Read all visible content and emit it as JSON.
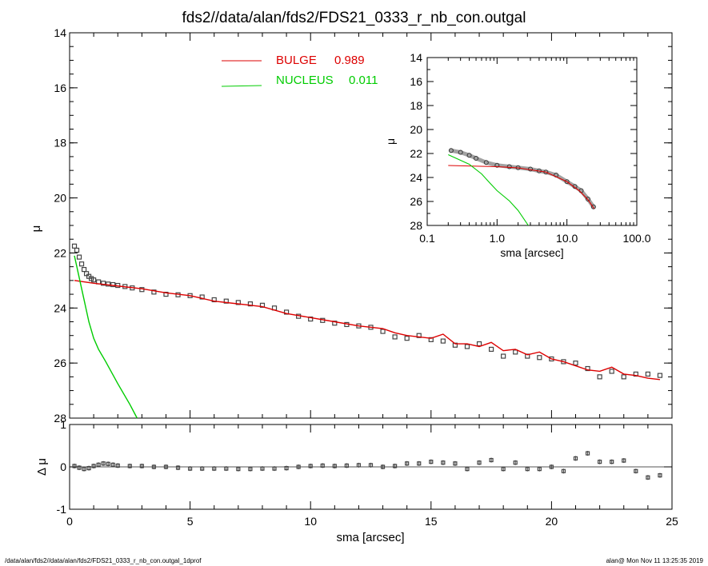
{
  "title": "fds2//data/alan/fds2/FDS21_0333_r_nb_con.outgal",
  "footer_left": "/data/alan/fds2//data/alan/fds2/FDS21_0333_r_nb_con.outgal_1dprof",
  "footer_right": "alan@  Mon Nov 11 13:25:35 2019",
  "colors": {
    "bulge": "#dd0000",
    "nucleus": "#00cc00",
    "data": "#444444",
    "zero_line": "#555555"
  },
  "chart_data": [
    {
      "type": "line",
      "panel": "main profile",
      "xlabel": "sma [arcsec]",
      "ylabel": "μ",
      "xlim": [
        0,
        25
      ],
      "ylim": [
        28,
        14
      ],
      "y_reversed": true,
      "xticks": [
        "0",
        "5",
        "10",
        "15",
        "20",
        "25"
      ],
      "yticks": [
        "14",
        "16",
        "18",
        "20",
        "22",
        "24",
        "26",
        "28"
      ],
      "legend": [
        {
          "name": "BULGE",
          "value": "0.989",
          "color": "#dd0000"
        },
        {
          "name": "NUCLEUS",
          "value": "0.011",
          "color": "#00cc00"
        }
      ],
      "series": [
        {
          "name": "data",
          "style": "squares",
          "x": [
            0.2,
            0.3,
            0.4,
            0.5,
            0.6,
            0.7,
            0.8,
            0.9,
            1.0,
            1.2,
            1.4,
            1.6,
            1.8,
            2.0,
            2.3,
            2.6,
            3.0,
            3.5,
            4.0,
            4.5,
            5.0,
            5.5,
            6.0,
            6.5,
            7.0,
            7.5,
            8.0,
            8.5,
            9.0,
            9.5,
            10.0,
            10.5,
            11.0,
            11.5,
            12.0,
            12.5,
            13.0,
            13.5,
            14.0,
            14.5,
            15.0,
            15.5,
            16.0,
            16.5,
            17.0,
            17.5,
            18.0,
            18.5,
            19.0,
            19.5,
            20.0,
            20.5,
            21.0,
            21.5,
            22.0,
            22.5,
            23.0,
            23.5,
            24.0,
            24.5
          ],
          "y": [
            21.75,
            21.9,
            22.15,
            22.4,
            22.6,
            22.75,
            22.85,
            22.93,
            22.98,
            23.05,
            23.1,
            23.13,
            23.15,
            23.18,
            23.22,
            23.27,
            23.33,
            23.42,
            23.5,
            23.52,
            23.55,
            23.6,
            23.7,
            23.75,
            23.8,
            23.85,
            23.9,
            24.0,
            24.15,
            24.3,
            24.4,
            24.45,
            24.55,
            24.6,
            24.65,
            24.7,
            24.85,
            25.05,
            25.1,
            25.0,
            25.15,
            25.2,
            25.35,
            25.4,
            25.3,
            25.5,
            25.75,
            25.6,
            25.75,
            25.8,
            25.85,
            25.95,
            26.0,
            26.2,
            26.5,
            26.3,
            26.5,
            26.4,
            26.4,
            26.45
          ]
        },
        {
          "name": "BULGE",
          "color": "#dd0000",
          "x": [
            0.2,
            1,
            2,
            3,
            4,
            5,
            6,
            7,
            8,
            9,
            10,
            11,
            12,
            13,
            13.5,
            14,
            14.5,
            15,
            15.5,
            16,
            16.5,
            17,
            17.5,
            18,
            18.5,
            19,
            19.5,
            20,
            20.5,
            21,
            21.5,
            22,
            22.5,
            23,
            23.5,
            24,
            24.5
          ],
          "y": [
            23.0,
            23.1,
            23.2,
            23.3,
            23.45,
            23.55,
            23.75,
            23.85,
            23.95,
            24.2,
            24.35,
            24.5,
            24.65,
            24.75,
            24.9,
            25.0,
            25.05,
            25.1,
            24.95,
            25.3,
            25.3,
            25.4,
            25.25,
            25.55,
            25.5,
            25.7,
            25.6,
            25.85,
            25.95,
            26.1,
            26.25,
            26.3,
            26.15,
            26.4,
            26.45,
            26.55,
            26.6
          ]
        },
        {
          "name": "NUCLEUS",
          "color": "#00cc00",
          "x": [
            0.2,
            0.4,
            0.6,
            0.8,
            1.0,
            1.2,
            1.5,
            2.0,
            2.5,
            2.8
          ],
          "y": [
            22.1,
            22.9,
            23.7,
            24.5,
            25.1,
            25.5,
            25.95,
            26.75,
            27.5,
            28.0
          ]
        }
      ]
    },
    {
      "type": "scatter",
      "panel": "residuals",
      "xlabel": "sma [arcsec]",
      "ylabel": "Δ μ",
      "xlim": [
        0,
        25
      ],
      "ylim": [
        -1,
        1
      ],
      "yticks": [
        "-1",
        "0",
        "1"
      ],
      "series": [
        {
          "name": "residual",
          "x": [
            0.2,
            0.4,
            0.6,
            0.8,
            1.0,
            1.2,
            1.4,
            1.6,
            1.8,
            2.0,
            2.5,
            3.0,
            3.5,
            4.0,
            4.5,
            5.0,
            5.5,
            6.0,
            6.5,
            7.0,
            7.5,
            8.0,
            8.5,
            9.0,
            9.5,
            10.0,
            10.5,
            11.0,
            11.5,
            12.0,
            12.5,
            13.0,
            13.5,
            14.0,
            14.5,
            15.0,
            15.5,
            16.0,
            16.5,
            17.0,
            17.5,
            18.0,
            18.5,
            19.0,
            19.5,
            20.0,
            20.5,
            21.0,
            21.5,
            22.0,
            22.5,
            23.0,
            23.5,
            24.0,
            24.5
          ],
          "y": [
            0.02,
            -0.02,
            -0.05,
            -0.03,
            0.02,
            0.05,
            0.08,
            0.07,
            0.05,
            0.03,
            0.02,
            0.02,
            0.0,
            0.0,
            -0.02,
            -0.04,
            -0.04,
            -0.04,
            -0.04,
            -0.05,
            -0.05,
            -0.04,
            -0.04,
            -0.03,
            0.0,
            0.02,
            0.03,
            0.02,
            0.03,
            0.04,
            0.04,
            0.0,
            0.02,
            0.08,
            0.08,
            0.12,
            0.1,
            0.08,
            -0.05,
            0.1,
            0.16,
            -0.05,
            0.1,
            -0.05,
            -0.05,
            0.0,
            -0.1,
            0.2,
            0.32,
            0.12,
            0.12,
            0.15,
            -0.1,
            -0.25,
            -0.2
          ]
        }
      ]
    },
    {
      "type": "line",
      "panel": "inset log profile",
      "xlabel": "sma [arcsec]",
      "ylabel": "μ",
      "xscale": "log",
      "xlim": [
        0.1,
        100
      ],
      "ylim": [
        28,
        14
      ],
      "y_reversed": true,
      "xticks": [
        "0.1",
        "1.0",
        "10.0",
        "100.0"
      ],
      "yticks": [
        "14",
        "16",
        "18",
        "20",
        "22",
        "24",
        "26",
        "28"
      ],
      "series": [
        {
          "name": "data",
          "style": "circles",
          "x": [
            0.22,
            0.3,
            0.4,
            0.5,
            0.7,
            1.0,
            1.5,
            2.0,
            3.0,
            4.0,
            5.0,
            7.0,
            10.0,
            13.0,
            16.0,
            20.0,
            24.0
          ],
          "y": [
            21.75,
            21.9,
            22.15,
            22.4,
            22.75,
            22.98,
            23.1,
            23.18,
            23.3,
            23.45,
            23.55,
            23.8,
            24.35,
            24.75,
            25.1,
            25.8,
            26.45
          ]
        },
        {
          "name": "BULGE",
          "color": "#dd0000",
          "x": [
            0.2,
            1,
            2,
            5,
            10,
            15,
            20,
            24.5
          ],
          "y": [
            23.0,
            23.1,
            23.2,
            23.55,
            24.35,
            25.1,
            25.85,
            26.6
          ]
        },
        {
          "name": "NUCLEUS",
          "color": "#00cc00",
          "x": [
            0.2,
            0.4,
            0.6,
            0.8,
            1.0,
            1.5,
            2.0,
            2.8
          ],
          "y": [
            22.1,
            22.9,
            23.7,
            24.5,
            25.1,
            25.95,
            26.75,
            28.0
          ]
        }
      ]
    }
  ]
}
